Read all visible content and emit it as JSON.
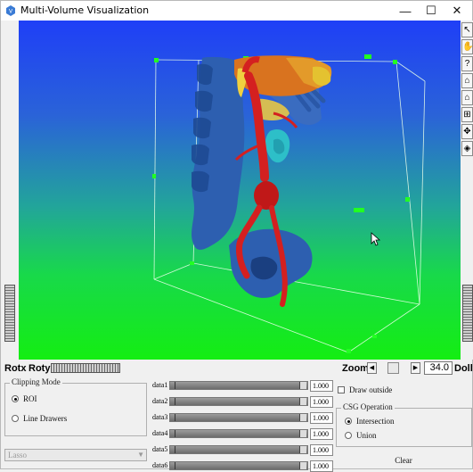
{
  "window": {
    "title": "Multi-Volume Visualization"
  },
  "titlebar": {
    "minimize": "—",
    "maximize": "☐",
    "close": "✕"
  },
  "toolbar": {
    "tools": [
      "↖",
      "✋",
      "?",
      "⌂",
      "⌂",
      "⊞",
      "✥",
      "◈"
    ]
  },
  "controls": {
    "rotx_label": "Rotx",
    "roty_label": "Roty",
    "zoom_label": "Zoom",
    "zoom_value": "34.0",
    "dolly_label": "Dolly"
  },
  "clipping": {
    "title": "Clipping Mode",
    "options": [
      "ROI",
      "Line Drawers"
    ],
    "selected": "ROI",
    "dropdown_value": "Lasso"
  },
  "data_rows": [
    {
      "label": "data1",
      "value": "1.000"
    },
    {
      "label": "data2",
      "value": "1.000"
    },
    {
      "label": "data3",
      "value": "1.000"
    },
    {
      "label": "data4",
      "value": "1.000"
    },
    {
      "label": "data5",
      "value": "1.000"
    },
    {
      "label": "data6",
      "value": "1.000"
    }
  ],
  "draw_outside": {
    "label": "Draw outside",
    "checked": false
  },
  "csg": {
    "title": "CSG Operation",
    "options": [
      "Intersection",
      "Union"
    ],
    "selected": "Intersection",
    "clear_label": "Clear"
  },
  "colors": {
    "viewport_top": "#1f3ff7",
    "viewport_bottom": "#14ee12",
    "artery": "#d42020",
    "bone": "#2d5fb0"
  }
}
